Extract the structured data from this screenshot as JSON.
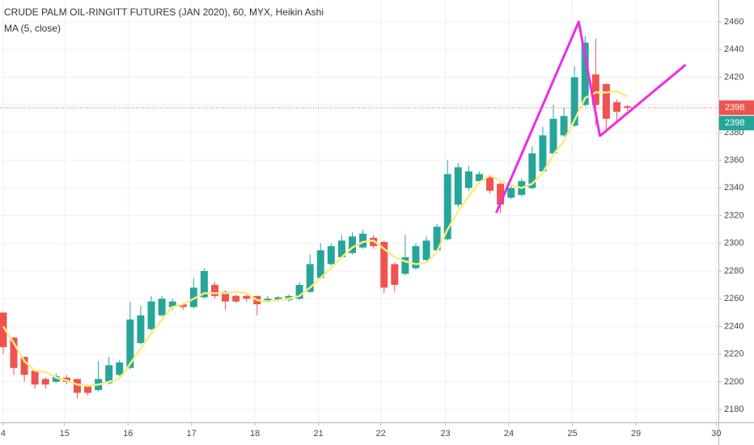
{
  "chart_data": {
    "type": "candlestick",
    "title": "CRUDE PALM OIL-RINGITT FUTURES (JAN 2020), 60, MYX, Heikin Ashi",
    "subtitle": "MA (5, close)",
    "up_color": "#26a69a",
    "down_color": "#ef5350",
    "x": [
      0,
      1,
      2,
      3,
      4,
      5,
      6,
      7,
      8,
      9,
      10,
      11,
      12,
      13,
      14,
      15,
      16,
      17,
      18,
      19,
      20,
      21,
      22,
      23,
      24,
      25,
      26,
      27,
      28,
      29,
      30,
      31,
      32,
      33,
      34,
      35,
      36,
      37,
      38,
      39,
      40,
      41,
      42,
      43,
      44,
      45,
      46,
      47,
      48,
      49,
      50,
      51,
      52,
      53,
      54,
      55,
      56,
      57,
      58,
      59
    ],
    "open": [
      2250,
      2232,
      2218,
      2208,
      2202,
      2200,
      2203,
      2202,
      2197,
      2194,
      2199,
      2205,
      2210,
      2228,
      2238,
      2248,
      2254,
      2256,
      2254,
      2261,
      2270,
      2265,
      2262,
      2262,
      2262,
      2258,
      2259,
      2259,
      2260,
      2265,
      2275,
      2285,
      2290,
      2293,
      2297,
      2304,
      2301,
      2285,
      2278,
      2282,
      2288,
      2295,
      2303,
      2328,
      2340,
      2345,
      2348,
      2343,
      2333,
      2335,
      2340,
      2352,
      2365,
      2378,
      2385,
      2400,
      2422,
      2415,
      2402,
      2399
    ],
    "high": [
      2250,
      2232,
      2218,
      2208,
      2203,
      2206,
      2205,
      2202,
      2198,
      2215,
      2218,
      2216,
      2258,
      2255,
      2262,
      2262,
      2260,
      2257,
      2275,
      2282,
      2272,
      2266,
      2263,
      2263,
      2262,
      2262,
      2262,
      2263,
      2272,
      2292,
      2300,
      2300,
      2306,
      2308,
      2310,
      2306,
      2302,
      2286,
      2306,
      2300,
      2305,
      2314,
      2360,
      2358,
      2356,
      2352,
      2349,
      2344,
      2342,
      2347,
      2370,
      2384,
      2400,
      2398,
      2428,
      2450,
      2448,
      2416,
      2404,
      2400
    ],
    "low": [
      2220,
      2205,
      2200,
      2195,
      2195,
      2199,
      2198,
      2188,
      2190,
      2193,
      2198,
      2204,
      2209,
      2227,
      2237,
      2247,
      2252,
      2252,
      2253,
      2260,
      2260,
      2252,
      2257,
      2258,
      2248,
      2257,
      2258,
      2258,
      2259,
      2264,
      2274,
      2284,
      2289,
      2292,
      2296,
      2296,
      2264,
      2265,
      2277,
      2281,
      2287,
      2294,
      2302,
      2326,
      2338,
      2344,
      2336,
      2322,
      2332,
      2334,
      2339,
      2351,
      2364,
      2377,
      2384,
      2399,
      2385,
      2380,
      2388,
      2396
    ],
    "close": [
      2225,
      2210,
      2205,
      2198,
      2198,
      2204,
      2200,
      2192,
      2192,
      2202,
      2212,
      2214,
      2245,
      2248,
      2258,
      2260,
      2258,
      2254,
      2268,
      2280,
      2262,
      2258,
      2258,
      2260,
      2256,
      2260,
      2261,
      2262,
      2270,
      2285,
      2295,
      2298,
      2302,
      2305,
      2307,
      2298,
      2268,
      2270,
      2290,
      2298,
      2302,
      2312,
      2350,
      2355,
      2352,
      2350,
      2338,
      2328,
      2340,
      2345,
      2365,
      2378,
      2390,
      2392,
      2420,
      2445,
      2400,
      2390,
      2395,
      2398
    ],
    "ma": {
      "color": "#f7ee7f",
      "values": [
        2240,
        2228,
        2215,
        2208,
        2207,
        2203,
        2201,
        2198,
        2197,
        2198,
        2200,
        2202,
        2213,
        2224,
        2235,
        2245,
        2254,
        2256,
        2260,
        2264,
        2264,
        2264,
        2265,
        2264,
        2259,
        2258,
        2259,
        2260,
        2262,
        2268,
        2275,
        2282,
        2290,
        2297,
        2301,
        2302,
        2296,
        2290,
        2287,
        2285,
        2286,
        2294,
        2310,
        2323,
        2334,
        2344,
        2349,
        2345,
        2342,
        2340,
        2343,
        2351,
        2364,
        2374,
        2389,
        2405,
        2409,
        2409,
        2410,
        2406
      ]
    },
    "drawing": {
      "color": "#ec2ce8",
      "x": [
        46.6,
        54.4,
        56.4,
        64.5
      ],
      "y": [
        2322.1,
        2460,
        2377.6,
        2429
      ]
    },
    "price_labels": [
      {
        "value": 2398,
        "color": "#ef5350"
      },
      {
        "value": 2398,
        "color": "#26a69a"
      }
    ],
    "xlim": [
      -0.3,
      67.6
    ],
    "ylim": [
      2170.7,
      2475.8
    ],
    "xticks": [
      {
        "value": 0,
        "label": "4"
      },
      {
        "value": 5.8,
        "label": "15"
      },
      {
        "value": 11.8,
        "label": "16"
      },
      {
        "value": 17.8,
        "label": "17"
      },
      {
        "value": 23.8,
        "label": "18"
      },
      {
        "value": 29.8,
        "label": "21"
      },
      {
        "value": 35.7,
        "label": "22"
      },
      {
        "value": 41.8,
        "label": "23"
      },
      {
        "value": 47.8,
        "label": "24"
      },
      {
        "value": 53.8,
        "label": "25"
      },
      {
        "value": 59.8,
        "label": "29"
      },
      {
        "value": 67.4,
        "label": "30"
      }
    ],
    "yticks": [
      2180,
      2200,
      2220,
      2240,
      2260,
      2280,
      2300,
      2320,
      2340,
      2360,
      2380,
      2400,
      2420,
      2440,
      2460
    ],
    "grid": true
  }
}
